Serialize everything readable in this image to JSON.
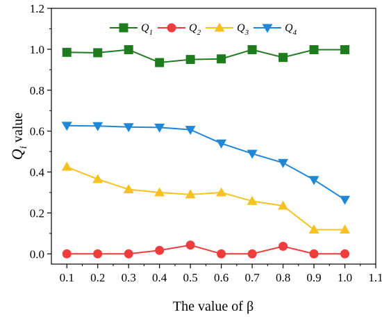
{
  "chart_data": {
    "type": "line",
    "xlabel": "The value of β",
    "ylabel": {
      "base": "Q",
      "sub": "i",
      "rest": " value"
    },
    "xlim": [
      0.05,
      1.1
    ],
    "ylim": [
      -0.05,
      1.2
    ],
    "xticks": [
      0.1,
      0.2,
      0.3,
      0.4,
      0.5,
      0.6,
      0.7,
      0.8,
      0.9,
      1.0,
      1.1
    ],
    "xtick_labels": [
      "0.1",
      "0.2",
      "0.3",
      "0.4",
      "0.5",
      "0.6",
      "0.7",
      "0.8",
      "0.9",
      "1.0",
      "1.1"
    ],
    "yticks": [
      0.0,
      0.2,
      0.4,
      0.6,
      0.8,
      1.0,
      1.2
    ],
    "ytick_labels": [
      "0.0",
      "0.2",
      "0.4",
      "0.6",
      "0.8",
      "1.0",
      "1.2"
    ],
    "grid": false,
    "legend_position": "top",
    "x": [
      0.1,
      0.2,
      0.3,
      0.4,
      0.5,
      0.6,
      0.7,
      0.8,
      0.9,
      1.0
    ],
    "series": [
      {
        "name": "Q",
        "sub": "1",
        "color": "#1e7b1e",
        "marker": "square",
        "values": [
          0.985,
          0.983,
          0.998,
          0.935,
          0.95,
          0.953,
          0.998,
          0.96,
          0.998,
          0.998
        ]
      },
      {
        "name": "Q",
        "sub": "2",
        "color": "#f03c3c",
        "marker": "circle",
        "values": [
          0.0,
          0.0,
          0.0,
          0.017,
          0.043,
          0.0,
          0.0,
          0.037,
          0.0,
          0.0
        ]
      },
      {
        "name": "Q",
        "sub": "3",
        "color": "#f7c21f",
        "marker": "triangle-up",
        "values": [
          0.425,
          0.365,
          0.315,
          0.3,
          0.29,
          0.3,
          0.258,
          0.235,
          0.118,
          0.118
        ]
      },
      {
        "name": "Q",
        "sub": "4",
        "color": "#1f87d6",
        "marker": "triangle-down",
        "values": [
          0.627,
          0.625,
          0.62,
          0.618,
          0.607,
          0.54,
          0.49,
          0.445,
          0.362,
          0.265
        ]
      }
    ]
  }
}
